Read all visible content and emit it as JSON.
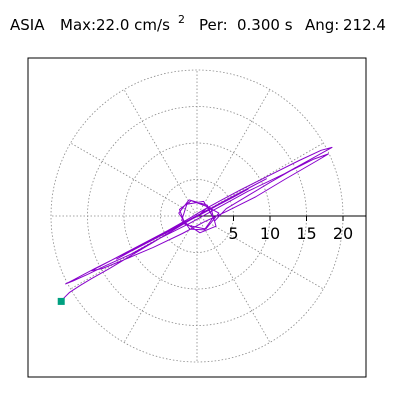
{
  "header": {
    "station": "ASIA",
    "max_label": "Max:",
    "max_value": "22.0 cm/s",
    "max_exponent": "2",
    "per_label": "Per:",
    "per_value": "0.300 s",
    "ang_label": "Ang:",
    "ang_value": "212.4"
  },
  "chart_data": {
    "type": "line",
    "coordinate_system": "polar",
    "title": "",
    "radial_ticks": [
      "5",
      "10",
      "15",
      "20"
    ],
    "radial_tick_values": [
      5,
      10,
      15,
      20
    ],
    "angular_spokes_deg": [
      0,
      30,
      60,
      90,
      120,
      150,
      180,
      210,
      240,
      270,
      300,
      330
    ],
    "grid": true,
    "max_magnitude": 22.0,
    "max_angle_deg": 212.4,
    "series": [
      {
        "color": "#8800cc",
        "x": [
          0.2,
          1.5,
          3.0,
          1.2,
          -1.6,
          -2.4,
          -0.8,
          1.9,
          2.6,
          0.4,
          -2.1,
          -1.4,
          0.9,
          2.2,
          1.0,
          -1.0,
          -2.5,
          -1.1,
          1.4,
          2.4,
          4.0,
          7.0,
          10.0,
          13.0,
          16.0,
          18.0,
          16.5,
          12.0,
          8.0,
          4.0,
          1.0,
          -2.0,
          -6.0,
          -10.0,
          -13.0,
          -14.5,
          -12.0,
          -8.0,
          -4.0,
          -1.0,
          1.0,
          3.0,
          6.0,
          10.0,
          14.0,
          17.0,
          18.5,
          16.0,
          12.0,
          7.0,
          3.0,
          -1.0,
          -5.0,
          -9.0,
          -12.5,
          -15.0,
          -17.0,
          -18.0,
          -17.0,
          -14.0,
          -9.0,
          -4.0,
          0.5,
          4.0,
          7.0,
          9.5,
          8.0,
          5.0,
          2.0,
          -1.5,
          -4.0,
          -6.5,
          -9.0,
          -11.0,
          -9.0,
          -6.0,
          -3.0,
          -0.5,
          1.8,
          3.5,
          5.5,
          7.0,
          5.0,
          2.5,
          0.5,
          -1.2,
          -2.4,
          -1.8,
          0.0,
          2.0,
          3.2,
          2.0,
          0.2,
          -1.5,
          -2.6,
          -2.0,
          -0.4,
          1.6,
          2.8,
          1.8,
          0.0,
          -1.8,
          -2.7,
          -1.6,
          0.4,
          2.2,
          2.6,
          1.0,
          -0.9,
          -2.3,
          -1.6,
          0.3,
          1.9,
          1.4,
          -0.2,
          -1.4,
          -1.0,
          0.4,
          1.1,
          0.0,
          -3.0,
          -6.0,
          -9.0,
          -12.0,
          -14.5,
          -16.0,
          -17.5,
          -18.2,
          -18.6
        ],
        "y": [
          0.1,
          1.2,
          0.4,
          -1.8,
          -1.2,
          0.9,
          2.1,
          1.1,
          -1.4,
          -2.3,
          -0.6,
          1.6,
          2.0,
          -0.2,
          -1.9,
          -1.8,
          0.4,
          2.2,
          1.5,
          -0.7,
          1.0,
          2.8,
          4.6,
          6.3,
          7.8,
          8.5,
          7.6,
          5.0,
          2.6,
          0.6,
          -0.8,
          -2.4,
          -4.3,
          -6.0,
          -7.2,
          -7.5,
          -6.2,
          -4.1,
          -2.0,
          -0.3,
          0.9,
          2.0,
          3.6,
          5.6,
          7.6,
          9.0,
          9.4,
          8.0,
          5.8,
          3.4,
          1.2,
          -1.0,
          -3.0,
          -5.2,
          -6.8,
          -8.0,
          -8.9,
          -9.3,
          -8.8,
          -7.2,
          -4.7,
          -2.1,
          0.3,
          2.2,
          3.8,
          5.1,
          4.3,
          2.7,
          1.0,
          -0.8,
          -2.2,
          -3.5,
          -4.8,
          -5.9,
          -4.8,
          -3.2,
          -1.6,
          -0.2,
          1.0,
          1.9,
          2.9,
          3.7,
          2.6,
          1.3,
          0.2,
          -0.7,
          -1.3,
          -0.9,
          0.0,
          1.1,
          1.7,
          1.1,
          0.1,
          -0.8,
          -1.4,
          -1.1,
          -0.2,
          0.9,
          1.5,
          1.0,
          0.0,
          -1.0,
          -1.4,
          -0.8,
          0.2,
          1.2,
          1.4,
          0.6,
          -0.5,
          -1.2,
          -0.8,
          0.1,
          1.0,
          0.8,
          -0.1,
          -0.7,
          -0.5,
          0.2,
          0.6,
          0.0,
          -1.8,
          -3.6,
          -5.4,
          -7.2,
          -8.6,
          -9.5,
          -10.5,
          -11.2,
          -11.7
        ]
      }
    ],
    "end_marker": {
      "color": "#00a080",
      "x": -18.6,
      "y": -11.7
    }
  }
}
